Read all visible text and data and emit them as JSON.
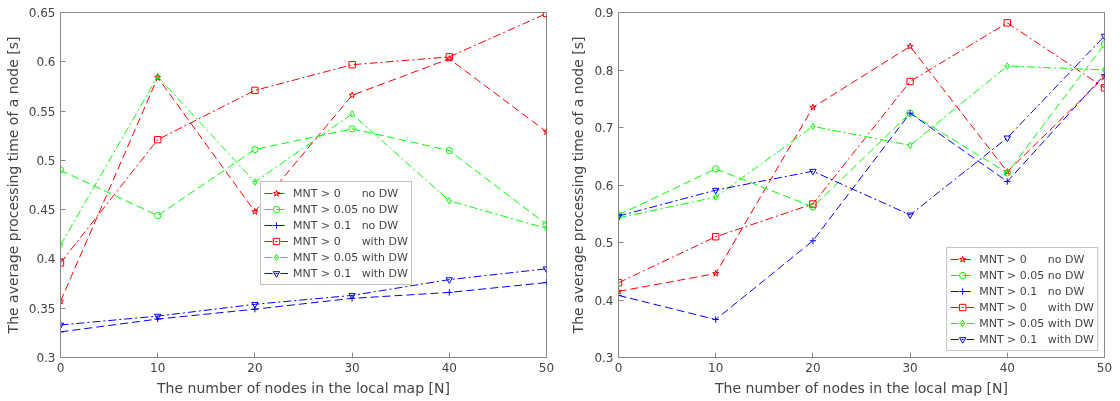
{
  "chart_data": [
    {
      "type": "line",
      "xlabel": "The number of nodes in the local map [N]",
      "ylabel": "The average processing time of a node [s]",
      "x": [
        0,
        10,
        20,
        30,
        40,
        50
      ],
      "xlim": [
        0,
        50
      ],
      "xticks": [
        0,
        10,
        20,
        30,
        40,
        50
      ],
      "ylim": [
        0.3,
        0.65
      ],
      "yticks": [
        0.3,
        0.35,
        0.4,
        0.45,
        0.5,
        0.55,
        0.6,
        0.65
      ],
      "grid": false,
      "legend": "center",
      "series": [
        {
          "name": "MNT > 0      no DW",
          "color": "#ff0000",
          "marker": "star",
          "line_style": "dashed",
          "values": [
            0.357,
            0.584,
            0.448,
            0.566,
            0.603,
            0.529
          ]
        },
        {
          "name": "MNT > 0.05 no DW",
          "color": "#00ff00",
          "marker": "circle",
          "line_style": "dashed",
          "values": [
            0.49,
            0.444,
            0.511,
            0.532,
            0.51,
            0.435
          ]
        },
        {
          "name": "MNT > 0.1   no DW",
          "color": "#0000ff",
          "marker": "cross",
          "line_style": "dashed",
          "values": [
            0.326,
            0.339,
            0.349,
            0.36,
            0.366,
            0.376
          ]
        },
        {
          "name": "MNT > 0      with DW",
          "color": "#ff0000",
          "marker": "square",
          "line_style": "dashdot",
          "values": [
            0.396,
            0.521,
            0.571,
            0.597,
            0.605,
            0.649
          ]
        },
        {
          "name": "MNT > 0.05 with DW",
          "color": "#00ff00",
          "marker": "diamond",
          "line_style": "dashdot",
          "values": [
            0.414,
            0.585,
            0.478,
            0.547,
            0.459,
            0.431
          ]
        },
        {
          "name": "MNT > 0.1   with DW",
          "color": "#0000ff",
          "marker": "triangle",
          "line_style": "dashdot",
          "values": [
            0.333,
            0.342,
            0.354,
            0.363,
            0.379,
            0.39
          ]
        }
      ]
    },
    {
      "type": "line",
      "xlabel": "The number of nodes in the local map [N]",
      "ylabel": "The average processing time of a node [s]",
      "x": [
        0,
        10,
        20,
        30,
        40,
        50
      ],
      "xlim": [
        0,
        50
      ],
      "xticks": [
        0,
        10,
        20,
        30,
        40,
        50
      ],
      "ylim": [
        0.3,
        0.9
      ],
      "yticks": [
        0.3,
        0.4,
        0.5,
        0.6,
        0.7,
        0.8,
        0.9
      ],
      "grid": false,
      "legend": "bottom right",
      "series": [
        {
          "name": "MNT > 0      no DW",
          "color": "#ff0000",
          "marker": "star",
          "line_style": "dashed",
          "values": [
            0.415,
            0.446,
            0.735,
            0.841,
            0.623,
            0.788
          ]
        },
        {
          "name": "MNT > 0.05 no DW",
          "color": "#00ff00",
          "marker": "circle",
          "line_style": "dashed",
          "values": [
            0.548,
            0.628,
            0.562,
            0.725,
            0.621,
            0.845
          ]
        },
        {
          "name": "MNT > 0.1   no DW",
          "color": "#0000ff",
          "marker": "cross",
          "line_style": "dashed",
          "values": [
            0.408,
            0.366,
            0.503,
            0.725,
            0.606,
            0.792
          ]
        },
        {
          "name": "MNT > 0      with DW",
          "color": "#ff0000",
          "marker": "square",
          "line_style": "dashdot",
          "values": [
            0.43,
            0.51,
            0.567,
            0.78,
            0.882,
            0.769
          ]
        },
        {
          "name": "MNT > 0.05 with DW",
          "color": "#00ff00",
          "marker": "diamond",
          "line_style": "dashdot",
          "values": [
            0.543,
            0.579,
            0.702,
            0.669,
            0.807,
            0.8
          ]
        },
        {
          "name": "MNT > 0.1   with DW",
          "color": "#0000ff",
          "marker": "triangle",
          "line_style": "dashdot",
          "values": [
            0.546,
            0.591,
            0.624,
            0.548,
            0.682,
            0.859
          ]
        }
      ]
    }
  ]
}
